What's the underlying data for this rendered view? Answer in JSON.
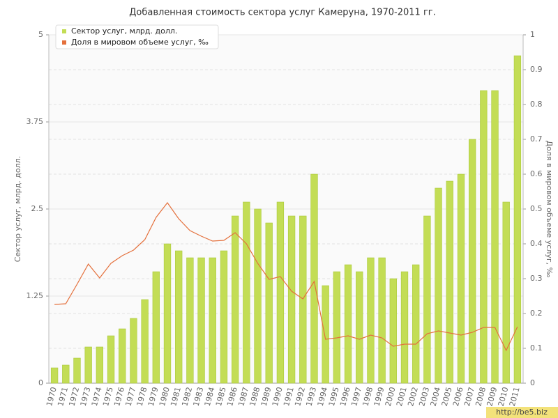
{
  "chart_data": {
    "type": "bar",
    "title": "Добавленная стоимость сектора услуг Камеруна, 1970-2011 гг.",
    "y_label": "Сектор услуг, млрд. долл.",
    "y2_label": "Доля в мировом объеме услуг, ‰",
    "watermark": "http://be5.biz",
    "categories": [
      "1970",
      "1971",
      "1972",
      "1973",
      "1974",
      "1975",
      "1976",
      "1977",
      "1978",
      "1979",
      "1980",
      "1981",
      "1982",
      "1983",
      "1984",
      "1985",
      "1986",
      "1987",
      "1988",
      "1989",
      "1990",
      "1991",
      "1992",
      "1993",
      "1994",
      "1995",
      "1996",
      "1997",
      "1998",
      "1999",
      "2000",
      "2001",
      "2002",
      "2003",
      "2004",
      "2005",
      "2006",
      "2007",
      "2008",
      "2009",
      "2010",
      "2011"
    ],
    "series": [
      {
        "name": "Сектор услуг, млрд. долл.",
        "type": "bar",
        "color": "#c3dd55",
        "values": [
          0.22,
          0.26,
          0.36,
          0.52,
          0.52,
          0.68,
          0.78,
          0.93,
          1.2,
          1.6,
          2.0,
          1.9,
          1.8,
          1.8,
          1.8,
          1.9,
          2.4,
          2.6,
          2.5,
          2.3,
          2.6,
          2.4,
          2.4,
          3.0,
          1.4,
          1.6,
          1.7,
          1.6,
          1.8,
          1.8,
          1.5,
          1.6,
          1.7,
          2.4,
          2.8,
          2.9,
          3.0,
          3.5,
          4.2,
          4.2,
          2.6,
          4.7
        ]
      },
      {
        "name": "Доля в мировом объеме услуг, ‰",
        "type": "line",
        "axis": "y2",
        "color": "#e4703c",
        "values": [
          0.226,
          0.228,
          0.284,
          0.342,
          0.302,
          0.344,
          0.366,
          0.382,
          0.412,
          0.476,
          0.518,
          0.472,
          0.438,
          0.422,
          0.408,
          0.41,
          0.432,
          0.4,
          0.344,
          0.298,
          0.306,
          0.264,
          0.242,
          0.292,
          0.126,
          0.13,
          0.136,
          0.126,
          0.138,
          0.13,
          0.106,
          0.112,
          0.112,
          0.142,
          0.15,
          0.144,
          0.138,
          0.146,
          0.16,
          0.16,
          0.094,
          0.162
        ]
      }
    ],
    "ylim": [
      0,
      5
    ],
    "yticks": [
      0,
      1.25,
      2.5,
      3.75,
      5
    ],
    "y2lim": [
      0,
      1
    ],
    "y2ticks": [
      0,
      0.1,
      0.2,
      0.3,
      0.4,
      0.5,
      0.6,
      0.7,
      0.8,
      0.9,
      1
    ],
    "grid": true
  }
}
